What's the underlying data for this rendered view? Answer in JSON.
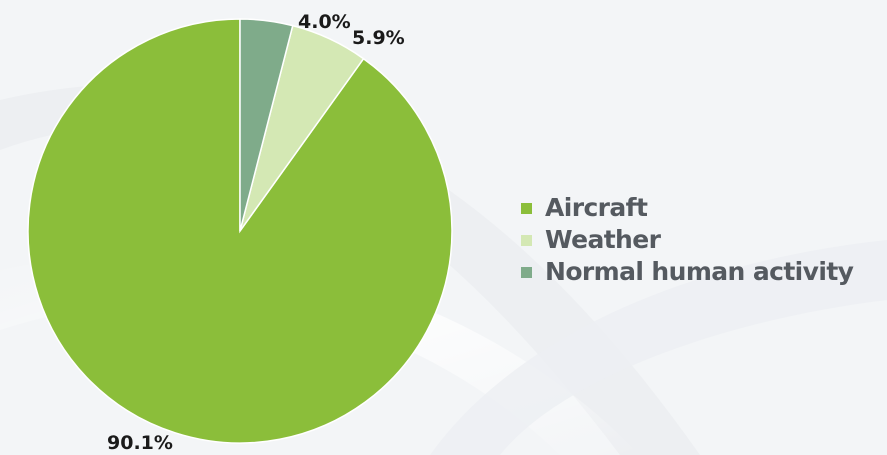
{
  "chart_data": {
    "type": "pie",
    "title": "",
    "categories": [
      "Aircraft",
      "Weather",
      "Normal human activity"
    ],
    "values": [
      90.1,
      5.9,
      4.0
    ],
    "labels": [
      "90.1%",
      "5.9%",
      "4.0%"
    ],
    "colors": [
      "#8bbe3a",
      "#d4e8b4",
      "#7fab8a"
    ],
    "legend_position": "right",
    "start_angle": "12 o'clock",
    "direction": "counterclockwise",
    "legend": [
      {
        "label": "Aircraft",
        "color": "#8bbe3a"
      },
      {
        "label": "Weather",
        "color": "#d4e8b4"
      },
      {
        "label": "Normal human activity",
        "color": "#7fab8a"
      }
    ]
  }
}
